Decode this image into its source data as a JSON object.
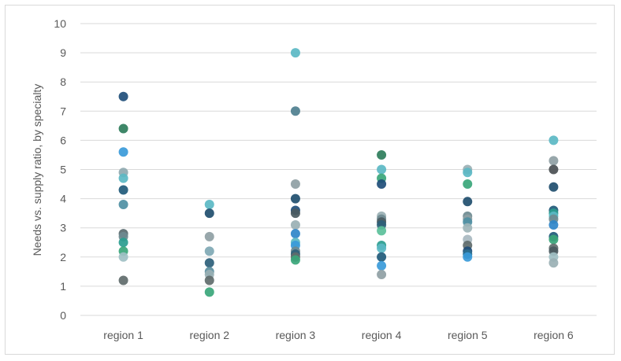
{
  "chart_data": {
    "type": "scatter",
    "title": "",
    "xlabel": "",
    "ylabel": "Needs vs. supply ratio, by specialty",
    "categories": [
      "region 1",
      "region 2",
      "region 3",
      "region 4",
      "region 5",
      "region 6"
    ],
    "ylim": [
      0,
      10
    ],
    "yticks": [
      "0",
      "1",
      "2",
      "3",
      "4",
      "5",
      "6",
      "7",
      "8",
      "9",
      "10"
    ],
    "grid": true,
    "legend": "none",
    "points": [
      {
        "category": "region 1",
        "y": 7.5,
        "color": "#1f4e79"
      },
      {
        "category": "region 1",
        "y": 6.4,
        "color": "#2e7d5b"
      },
      {
        "category": "region 1",
        "y": 5.6,
        "color": "#3a9ad9"
      },
      {
        "category": "region 1",
        "y": 4.9,
        "color": "#8fa9b0"
      },
      {
        "category": "region 1",
        "y": 4.7,
        "color": "#5bb8c4"
      },
      {
        "category": "region 1",
        "y": 4.3,
        "color": "#1f5a7a"
      },
      {
        "category": "region 1",
        "y": 3.8,
        "color": "#4e8fa3"
      },
      {
        "category": "region 1",
        "y": 2.8,
        "color": "#5a6b70"
      },
      {
        "category": "region 1",
        "y": 2.7,
        "color": "#6e8a90"
      },
      {
        "category": "region 1",
        "y": 2.5,
        "color": "#2a9d8f"
      },
      {
        "category": "region 1",
        "y": 2.2,
        "color": "#3aa67a"
      },
      {
        "category": "region 1",
        "y": 2.0,
        "color": "#9fc0c4"
      },
      {
        "category": "region 1",
        "y": 1.2,
        "color": "#5f6b6b"
      },
      {
        "category": "region 2",
        "y": 3.8,
        "color": "#5bb8c4"
      },
      {
        "category": "region 2",
        "y": 3.5,
        "color": "#1f4e6e"
      },
      {
        "category": "region 2",
        "y": 2.7,
        "color": "#8fa0a4"
      },
      {
        "category": "region 2",
        "y": 2.2,
        "color": "#7fa8b4"
      },
      {
        "category": "region 2",
        "y": 1.8,
        "color": "#2d5f7a"
      },
      {
        "category": "region 2",
        "y": 1.5,
        "color": "#5c8fa0"
      },
      {
        "category": "region 2",
        "y": 1.4,
        "color": "#9ab0b4"
      },
      {
        "category": "region 2",
        "y": 1.2,
        "color": "#5f6b6b"
      },
      {
        "category": "region 2",
        "y": 0.8,
        "color": "#3aa67a"
      },
      {
        "category": "region 3",
        "y": 9.0,
        "color": "#5bb8c4"
      },
      {
        "category": "region 3",
        "y": 7.0,
        "color": "#4e7f8f"
      },
      {
        "category": "region 3",
        "y": 4.5,
        "color": "#8fa0a4"
      },
      {
        "category": "region 3",
        "y": 4.0,
        "color": "#1f4e6e"
      },
      {
        "category": "region 3",
        "y": 3.6,
        "color": "#1f4e79"
      },
      {
        "category": "region 3",
        "y": 3.5,
        "color": "#4a5a60"
      },
      {
        "category": "region 3",
        "y": 3.1,
        "color": "#9ab0b4"
      },
      {
        "category": "region 3",
        "y": 2.8,
        "color": "#2f86c9"
      },
      {
        "category": "region 3",
        "y": 2.5,
        "color": "#5bb8c4"
      },
      {
        "category": "region 3",
        "y": 2.4,
        "color": "#3a9ad9"
      },
      {
        "category": "region 3",
        "y": 2.2,
        "color": "#6e8a90"
      },
      {
        "category": "region 3",
        "y": 2.1,
        "color": "#2d5f7a"
      },
      {
        "category": "region 3",
        "y": 2.0,
        "color": "#5f6b6b"
      },
      {
        "category": "region 3",
        "y": 1.9,
        "color": "#3aa67a"
      },
      {
        "category": "region 4",
        "y": 5.5,
        "color": "#2e7d5b"
      },
      {
        "category": "region 4",
        "y": 5.0,
        "color": "#5bb8c4"
      },
      {
        "category": "region 4",
        "y": 4.7,
        "color": "#3aa67a"
      },
      {
        "category": "region 4",
        "y": 4.5,
        "color": "#1f4e79"
      },
      {
        "category": "region 4",
        "y": 3.4,
        "color": "#9ab0b4"
      },
      {
        "category": "region 4",
        "y": 3.3,
        "color": "#6e8a90"
      },
      {
        "category": "region 4",
        "y": 3.2,
        "color": "#4a5a60"
      },
      {
        "category": "region 4",
        "y": 3.1,
        "color": "#2d5f7a"
      },
      {
        "category": "region 4",
        "y": 2.9,
        "color": "#5bc09a"
      },
      {
        "category": "region 4",
        "y": 2.4,
        "color": "#2a9d8f"
      },
      {
        "category": "region 4",
        "y": 2.3,
        "color": "#5bb8c4"
      },
      {
        "category": "region 4",
        "y": 2.0,
        "color": "#1f5a7a"
      },
      {
        "category": "region 4",
        "y": 1.7,
        "color": "#3a9ad9"
      },
      {
        "category": "region 4",
        "y": 1.4,
        "color": "#8fa0a4"
      },
      {
        "category": "region 5",
        "y": 5.0,
        "color": "#9ab0b4"
      },
      {
        "category": "region 5",
        "y": 4.9,
        "color": "#5bb8c4"
      },
      {
        "category": "region 5",
        "y": 4.5,
        "color": "#3aa67a"
      },
      {
        "category": "region 5",
        "y": 3.9,
        "color": "#1f4e6e"
      },
      {
        "category": "region 5",
        "y": 3.4,
        "color": "#6e8a90"
      },
      {
        "category": "region 5",
        "y": 3.3,
        "color": "#8fa0a4"
      },
      {
        "category": "region 5",
        "y": 3.2,
        "color": "#4e8fa3"
      },
      {
        "category": "region 5",
        "y": 3.0,
        "color": "#9fb5b8"
      },
      {
        "category": "region 5",
        "y": 2.6,
        "color": "#a8b8c0"
      },
      {
        "category": "region 5",
        "y": 2.4,
        "color": "#5f6b6b"
      },
      {
        "category": "region 5",
        "y": 2.2,
        "color": "#1f4e79"
      },
      {
        "category": "region 5",
        "y": 2.1,
        "color": "#2a6f8f"
      },
      {
        "category": "region 5",
        "y": 2.0,
        "color": "#3a9ad9"
      },
      {
        "category": "region 6",
        "y": 6.0,
        "color": "#5bb8c4"
      },
      {
        "category": "region 6",
        "y": 5.3,
        "color": "#8fa0a4"
      },
      {
        "category": "region 6",
        "y": 5.0,
        "color": "#4a4f52"
      },
      {
        "category": "region 6",
        "y": 4.4,
        "color": "#1f4e6e"
      },
      {
        "category": "region 6",
        "y": 3.6,
        "color": "#1f5a7a"
      },
      {
        "category": "region 6",
        "y": 3.5,
        "color": "#2a9d8f"
      },
      {
        "category": "region 6",
        "y": 3.4,
        "color": "#5bb8c4"
      },
      {
        "category": "region 6",
        "y": 3.3,
        "color": "#6e8a90"
      },
      {
        "category": "region 6",
        "y": 3.1,
        "color": "#2f86c9"
      },
      {
        "category": "region 6",
        "y": 2.7,
        "color": "#1f5a7a"
      },
      {
        "category": "region 6",
        "y": 2.6,
        "color": "#3aa67a"
      },
      {
        "category": "region 6",
        "y": 2.3,
        "color": "#5f6b6b"
      },
      {
        "category": "region 6",
        "y": 2.2,
        "color": "#4a5a60"
      },
      {
        "category": "region 6",
        "y": 2.0,
        "color": "#9fc0c4"
      },
      {
        "category": "region 6",
        "y": 1.8,
        "color": "#9ab0b4"
      }
    ]
  }
}
